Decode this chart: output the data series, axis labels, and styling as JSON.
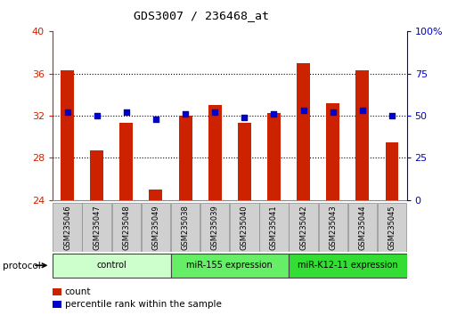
{
  "title": "GDS3007 / 236468_at",
  "samples": [
    "GSM235046",
    "GSM235047",
    "GSM235048",
    "GSM235049",
    "GSM235038",
    "GSM235039",
    "GSM235040",
    "GSM235041",
    "GSM235042",
    "GSM235043",
    "GSM235044",
    "GSM235045"
  ],
  "bar_values": [
    36.3,
    28.7,
    31.3,
    25.0,
    32.0,
    33.0,
    31.3,
    32.3,
    37.0,
    33.2,
    36.3,
    29.5
  ],
  "pct_values": [
    52,
    50,
    52,
    48,
    51,
    52,
    49,
    51,
    53,
    52,
    53,
    50
  ],
  "bar_color": "#cc2200",
  "dot_color": "#0000cc",
  "ylim_left": [
    24,
    40
  ],
  "ylim_right": [
    0,
    100
  ],
  "yticks_left": [
    24,
    28,
    32,
    36,
    40
  ],
  "yticks_right": [
    0,
    25,
    50,
    75,
    100
  ],
  "groups": [
    {
      "label": "control",
      "start": 0,
      "end": 4,
      "color": "#ccffcc"
    },
    {
      "label": "miR-155 expression",
      "start": 4,
      "end": 8,
      "color": "#66ee66"
    },
    {
      "label": "miR-K12-11 expression",
      "start": 8,
      "end": 12,
      "color": "#33dd33"
    }
  ],
  "legend_count_label": "count",
  "legend_pct_label": "percentile rank within the sample",
  "protocol_label": "protocol",
  "bg_color": "#ffffff",
  "left_axis_color": "#cc2200",
  "right_axis_color": "#0000cc",
  "bar_width": 0.45,
  "dot_size": 18
}
